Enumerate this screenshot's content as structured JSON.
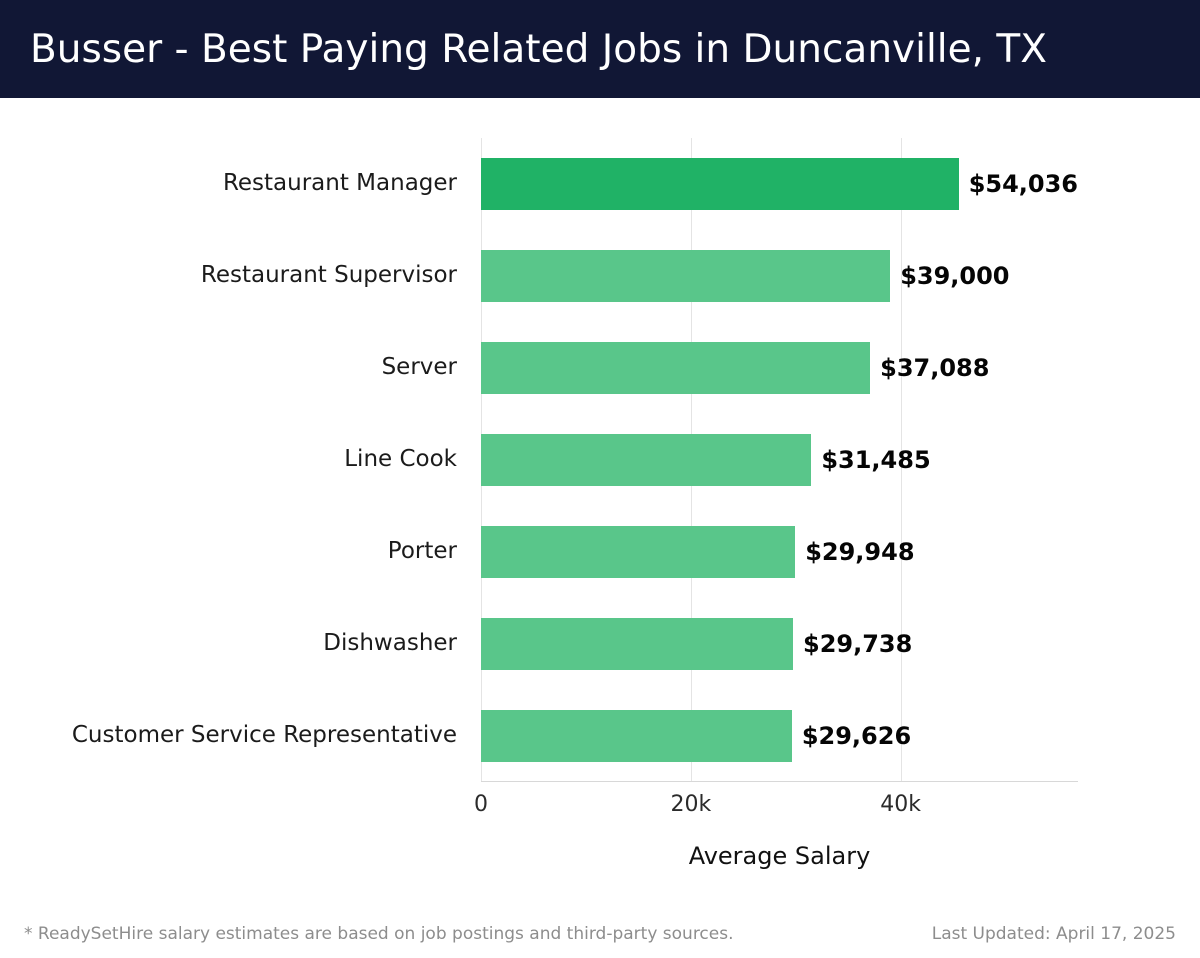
{
  "header": {
    "title": "Busser - Best Paying Related Jobs in Duncanville, TX"
  },
  "chart_data": {
    "type": "bar",
    "orientation": "horizontal",
    "title": "Busser - Best Paying Related Jobs in Duncanville, TX",
    "categories": [
      "Restaurant Manager",
      "Restaurant Supervisor",
      "Server",
      "Line Cook",
      "Porter",
      "Dishwasher",
      "Customer Service Representative"
    ],
    "values": [
      54036,
      39000,
      37088,
      31485,
      29948,
      29738,
      29626
    ],
    "value_labels": [
      "$54,036",
      "$39,000",
      "$37,088",
      "$31,485",
      "$29,948",
      "$29,738",
      "$29,626"
    ],
    "bar_colors": [
      "#20b266",
      "#59c68a",
      "#59c68a",
      "#59c68a",
      "#59c68a",
      "#59c68a",
      "#59c68a"
    ],
    "xlabel": "Average Salary",
    "ylabel": "",
    "xlim": [
      0,
      56900
    ],
    "x_ticks": [
      {
        "value": 0,
        "label": "0"
      },
      {
        "value": 20000,
        "label": "20k"
      },
      {
        "value": 40000,
        "label": "40k"
      }
    ],
    "grid": "vertical-gridlines",
    "legend": "none"
  },
  "footer": {
    "disclaimer": "* ReadySetHire salary estimates are based on job postings and third-party sources.",
    "last_updated": "Last Updated: April 17, 2025"
  },
  "colors": {
    "header_background": "#111735",
    "header_text": "#ffffff",
    "highlight_bar": "#20b266",
    "bar": "#59c68a",
    "gridline": "#e4e4e4",
    "axis_line": "#d8d8d8",
    "footer_text": "#8d8d8d"
  }
}
